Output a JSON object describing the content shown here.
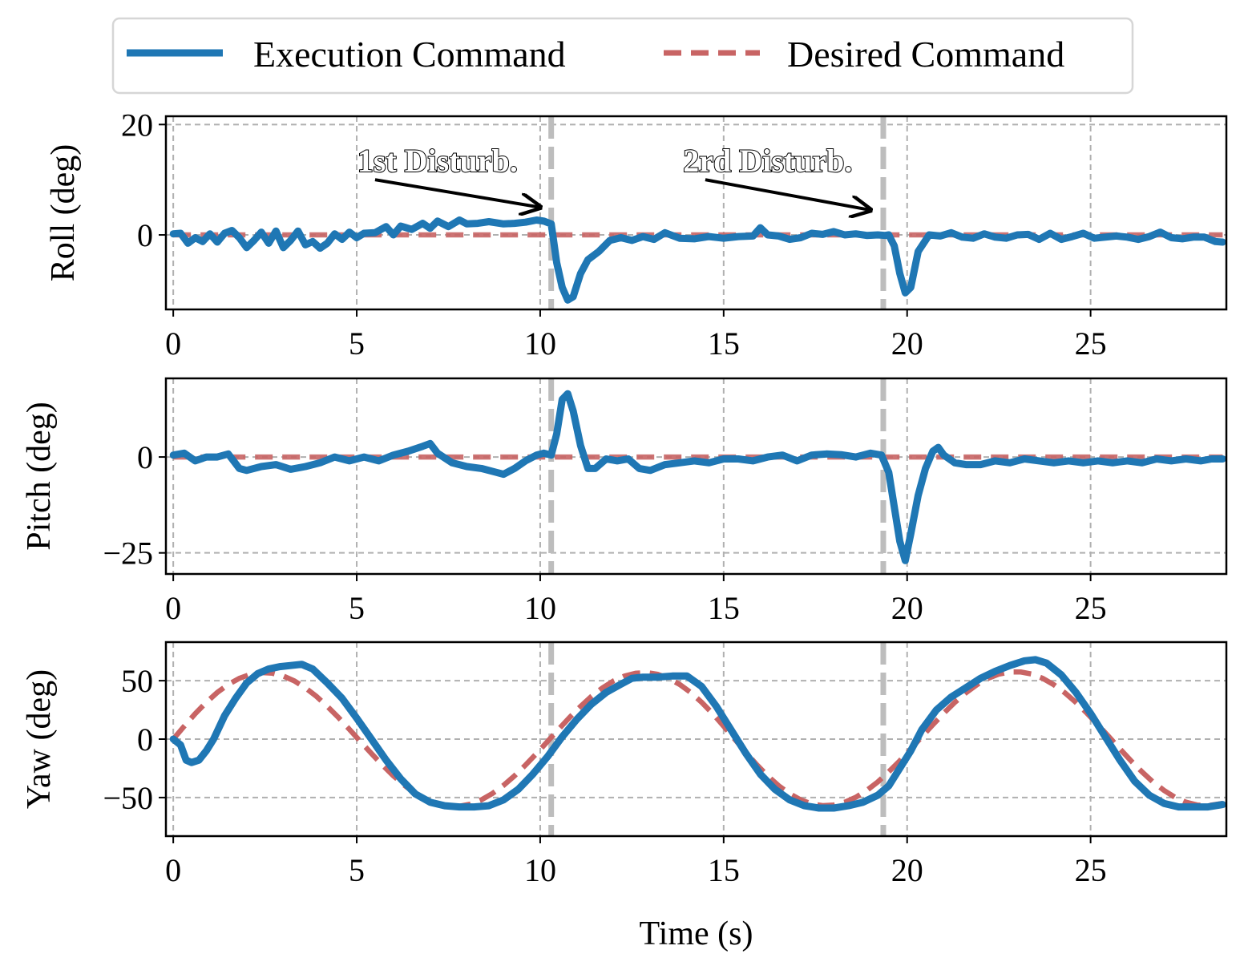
{
  "colors": {
    "execution": "#1f77b4",
    "desired": "#c86464",
    "disturbance_line": "#bdbdbd",
    "grid": "#b0b0b0"
  },
  "legend": {
    "placement": "top-center",
    "entries": [
      "Execution Command",
      "Desired Command"
    ]
  },
  "chart_data": [
    {
      "type": "line",
      "ylabel": "Roll (deg)",
      "xlabel": "",
      "xlim": [
        -0.2,
        28.7
      ],
      "ylim": [
        -13.5,
        21.5
      ],
      "xticks": [
        0,
        5,
        10,
        15,
        20,
        25
      ],
      "xtick_labels": [
        "0",
        "5",
        "10",
        "15",
        "20",
        "25"
      ],
      "yticks": [
        0,
        20
      ],
      "ytick_labels": [
        "0",
        "20"
      ],
      "grid": true,
      "disturbances_x": [
        10.3,
        19.35
      ],
      "annotations": [
        {
          "text": "1st Disturb.",
          "text_x": 7.2,
          "text_y": 13.5,
          "arrow_from": [
            5.5,
            10.0
          ],
          "arrow_to": [
            10.0,
            5.0
          ]
        },
        {
          "text": "2rd Disturb.",
          "text_x": 16.2,
          "text_y": 13.5,
          "arrow_from": [
            14.5,
            10.0
          ],
          "arrow_to": [
            19.0,
            4.5
          ]
        }
      ],
      "series": [
        {
          "name": "Execution Command",
          "x": [
            0,
            0.2,
            0.4,
            0.6,
            0.8,
            1.0,
            1.2,
            1.4,
            1.6,
            1.8,
            2.0,
            2.2,
            2.4,
            2.6,
            2.8,
            3.0,
            3.2,
            3.4,
            3.6,
            3.8,
            4.0,
            4.2,
            4.4,
            4.6,
            4.8,
            5.0,
            5.2,
            5.5,
            5.8,
            6.0,
            6.2,
            6.5,
            6.8,
            7.0,
            7.2,
            7.5,
            7.8,
            8.0,
            8.3,
            8.6,
            9.0,
            9.3,
            9.6,
            9.9,
            10.1,
            10.3,
            10.45,
            10.6,
            10.75,
            10.9,
            11.1,
            11.3,
            11.6,
            11.9,
            12.2,
            12.5,
            12.8,
            13.1,
            13.4,
            13.8,
            14.2,
            14.6,
            15.0,
            15.4,
            15.8,
            16.0,
            16.2,
            16.5,
            16.8,
            17.1,
            17.4,
            17.7,
            18.0,
            18.3,
            18.6,
            18.9,
            19.2,
            19.4,
            19.5,
            19.65,
            19.8,
            19.95,
            20.1,
            20.3,
            20.6,
            20.9,
            21.2,
            21.5,
            21.8,
            22.1,
            22.4,
            22.7,
            23.0,
            23.3,
            23.6,
            23.9,
            24.2,
            24.5,
            24.8,
            25.1,
            25.4,
            25.7,
            26.0,
            26.3,
            26.6,
            26.9,
            27.2,
            27.5,
            27.8,
            28.1,
            28.4,
            28.6
          ],
          "values": [
            0.2,
            0.3,
            -1.5,
            -0.5,
            -1.2,
            0.2,
            -1.3,
            0.3,
            0.8,
            -0.5,
            -2.3,
            -1.0,
            0.5,
            -1.5,
            0.7,
            -2.3,
            -1.0,
            0.7,
            -1.8,
            -1.2,
            -2.4,
            -1.5,
            0.2,
            -0.8,
            0.5,
            -0.5,
            0.3,
            0.4,
            1.5,
            0.0,
            1.6,
            1.0,
            2.1,
            1.2,
            2.5,
            1.5,
            2.7,
            2.0,
            2.1,
            2.4,
            2.0,
            2.1,
            2.3,
            2.7,
            2.5,
            2.0,
            -5.0,
            -9.5,
            -11.8,
            -11.2,
            -7.0,
            -4.5,
            -3.0,
            -1.0,
            -0.5,
            -1.0,
            -0.3,
            -0.8,
            0.4,
            -0.6,
            -0.7,
            -0.3,
            -0.6,
            -0.3,
            -0.2,
            1.3,
            0.0,
            -0.2,
            -0.8,
            -0.5,
            0.3,
            0.1,
            0.6,
            0.0,
            0.2,
            -0.1,
            0.0,
            -0.1,
            0.0,
            -2.0,
            -7.0,
            -10.5,
            -9.5,
            -3.0,
            0.0,
            -0.2,
            0.4,
            -0.4,
            -0.6,
            0.2,
            -0.4,
            -0.6,
            0.0,
            0.1,
            -0.8,
            0.3,
            -0.8,
            -0.3,
            0.3,
            -0.6,
            -0.4,
            -0.2,
            -0.4,
            -0.8,
            -0.3,
            0.5,
            -0.5,
            -0.7,
            -0.4,
            -0.4,
            -1.2,
            -1.3
          ]
        },
        {
          "name": "Desired Command",
          "x": [
            0,
            28.6
          ],
          "values": [
            0,
            0
          ]
        }
      ]
    },
    {
      "type": "line",
      "ylabel": "Pitch (deg)",
      "xlabel": "",
      "xlim": [
        -0.2,
        28.7
      ],
      "ylim": [
        -30.5,
        20.5
      ],
      "xticks": [
        0,
        5,
        10,
        15,
        20,
        25
      ],
      "xtick_labels": [
        "0",
        "5",
        "10",
        "15",
        "20",
        "25"
      ],
      "yticks": [
        -25,
        0
      ],
      "ytick_labels": [
        "−25",
        "0"
      ],
      "grid": true,
      "disturbances_x": [
        10.3,
        19.35
      ],
      "series": [
        {
          "name": "Execution Command",
          "x": [
            0,
            0.3,
            0.6,
            0.9,
            1.2,
            1.5,
            1.8,
            2.0,
            2.4,
            2.8,
            3.2,
            3.6,
            4.0,
            4.4,
            4.8,
            5.2,
            5.6,
            6.0,
            6.4,
            6.8,
            7.0,
            7.2,
            7.6,
            8.0,
            8.4,
            8.8,
            9.0,
            9.3,
            9.6,
            9.9,
            10.1,
            10.3,
            10.45,
            10.6,
            10.75,
            10.9,
            11.1,
            11.3,
            11.5,
            11.8,
            12.1,
            12.4,
            12.7,
            13.0,
            13.4,
            13.8,
            14.2,
            14.6,
            15.0,
            15.4,
            15.8,
            16.2,
            16.6,
            17.0,
            17.4,
            17.8,
            18.2,
            18.6,
            19.0,
            19.3,
            19.5,
            19.65,
            19.8,
            19.95,
            20.1,
            20.3,
            20.5,
            20.7,
            20.85,
            21.0,
            21.3,
            21.6,
            22.0,
            22.4,
            22.8,
            23.2,
            23.6,
            24.0,
            24.4,
            24.8,
            25.2,
            25.6,
            26.0,
            26.4,
            26.8,
            27.2,
            27.6,
            28.0,
            28.3,
            28.6
          ],
          "values": [
            0.5,
            1.0,
            -1.0,
            0.0,
            0.0,
            0.8,
            -3.0,
            -3.5,
            -2.5,
            -2.0,
            -3.2,
            -2.5,
            -1.5,
            0.0,
            -1.0,
            0.0,
            -1.0,
            0.5,
            1.5,
            2.8,
            3.5,
            1.0,
            -1.5,
            -2.5,
            -3.0,
            -4.0,
            -4.5,
            -3.0,
            -1.0,
            0.5,
            1.0,
            0.5,
            6.0,
            15.0,
            16.5,
            12.0,
            3.0,
            -3.0,
            -3.0,
            -0.5,
            -1.0,
            -0.5,
            -3.0,
            -3.5,
            -2.0,
            -1.5,
            -1.0,
            -1.5,
            -0.5,
            -0.5,
            -1.0,
            0.0,
            0.5,
            -1.0,
            0.5,
            0.8,
            0.6,
            0.0,
            1.0,
            0.5,
            -4.0,
            -13.0,
            -22.0,
            -27.0,
            -20.0,
            -10.0,
            -3.0,
            1.5,
            2.5,
            0.5,
            -1.5,
            -2.0,
            -2.0,
            -1.0,
            -1.5,
            -0.5,
            -1.0,
            -1.5,
            -1.0,
            -1.5,
            -1.0,
            -1.5,
            -1.0,
            -1.5,
            -0.5,
            -1.0,
            -0.5,
            -1.0,
            -0.5,
            -0.5
          ]
        },
        {
          "name": "Desired Command",
          "x": [
            0,
            28.6
          ],
          "values": [
            0,
            0
          ]
        }
      ]
    },
    {
      "type": "line",
      "ylabel": "Yaw (deg)",
      "xlabel": "Time (s)",
      "xlim": [
        -0.2,
        28.7
      ],
      "ylim": [
        -83,
        83
      ],
      "xticks": [
        0,
        5,
        10,
        15,
        20,
        25
      ],
      "xtick_labels": [
        "0",
        "5",
        "10",
        "15",
        "20",
        "25"
      ],
      "yticks": [
        -50,
        0,
        50
      ],
      "ytick_labels": [
        "−50",
        "0",
        "50"
      ],
      "grid": true,
      "disturbances_x": [
        10.3,
        19.35
      ],
      "series": [
        {
          "name": "Execution Command",
          "x": [
            0,
            0.2,
            0.35,
            0.5,
            0.7,
            0.9,
            1.1,
            1.4,
            1.7,
            2.0,
            2.3,
            2.6,
            2.9,
            3.2,
            3.5,
            3.8,
            4.2,
            4.6,
            5.0,
            5.4,
            5.8,
            6.2,
            6.6,
            7.0,
            7.4,
            7.8,
            8.2,
            8.6,
            9.0,
            9.4,
            9.8,
            10.2,
            10.6,
            11.0,
            11.4,
            11.8,
            12.2,
            12.5,
            12.8,
            13.2,
            13.6,
            14.0,
            14.4,
            14.8,
            15.2,
            15.6,
            16.0,
            16.4,
            16.8,
            17.2,
            17.6,
            18.0,
            18.4,
            18.8,
            19.2,
            19.5,
            19.8,
            20.1,
            20.4,
            20.8,
            21.2,
            21.6,
            22.0,
            22.4,
            22.8,
            23.2,
            23.5,
            23.8,
            24.2,
            24.6,
            25.0,
            25.4,
            25.8,
            26.2,
            26.6,
            27.0,
            27.4,
            27.8,
            28.2,
            28.6
          ],
          "values": [
            0,
            -5,
            -18,
            -20,
            -18,
            -10,
            0,
            20,
            35,
            48,
            56,
            60,
            62,
            63,
            64,
            60,
            48,
            35,
            18,
            0,
            -18,
            -34,
            -47,
            -54,
            -57,
            -58,
            -58,
            -57,
            -52,
            -43,
            -30,
            -15,
            2,
            17,
            30,
            40,
            47,
            52,
            53,
            53,
            54,
            54,
            45,
            28,
            8,
            -12,
            -30,
            -43,
            -52,
            -57,
            -59,
            -59,
            -57,
            -54,
            -48,
            -40,
            -25,
            -10,
            8,
            25,
            36,
            44,
            52,
            58,
            63,
            67,
            68,
            65,
            55,
            40,
            22,
            2,
            -18,
            -36,
            -48,
            -55,
            -58,
            -58,
            -58,
            -56
          ]
        },
        {
          "name": "Desired Command",
          "x": [
            0,
            0.3,
            0.6,
            0.9,
            1.2,
            1.5,
            1.8,
            2.1,
            2.4,
            2.7,
            3.0,
            3.3,
            3.6,
            3.9,
            4.2,
            4.5,
            4.8,
            5.1,
            5.4,
            5.7,
            6.0,
            6.3,
            6.6,
            6.9,
            7.2,
            7.5,
            7.8,
            8.1,
            8.4,
            8.7,
            9.0,
            9.3,
            9.6,
            9.9,
            10.2,
            10.5,
            10.8,
            11.1,
            11.4,
            11.7,
            12.0,
            12.3,
            12.6,
            12.9,
            13.2,
            13.5,
            13.8,
            14.1,
            14.4,
            14.7,
            15.0,
            15.3,
            15.6,
            15.9,
            16.2,
            16.5,
            16.8,
            17.1,
            17.4,
            17.7,
            18.0,
            18.3,
            18.6,
            18.9,
            19.2,
            19.5,
            19.8,
            20.1,
            20.4,
            20.7,
            21.0,
            21.3,
            21.6,
            21.9,
            22.2,
            22.5,
            22.8,
            23.1,
            23.4,
            23.7,
            24.0,
            24.3,
            24.6,
            24.9,
            25.2,
            25.5,
            25.8,
            26.1,
            26.4,
            26.7,
            27.0,
            27.3,
            27.6,
            27.9,
            28.2,
            28.6
          ],
          "values": [
            0,
            11.1,
            21.8,
            31.5,
            39.9,
            46.8,
            52.0,
            55.4,
            56.9,
            56.4,
            54.0,
            49.8,
            43.9,
            36.6,
            28.0,
            18.5,
            8.4,
            -2.0,
            -12.3,
            -22.2,
            -31.4,
            -39.6,
            -46.5,
            -51.9,
            -55.6,
            -57.4,
            -57.4,
            -55.6,
            -51.9,
            -46.5,
            -39.6,
            -31.4,
            -22.2,
            -12.3,
            -2.0,
            8.4,
            18.5,
            28.0,
            36.6,
            43.9,
            49.8,
            54.0,
            56.4,
            56.9,
            55.4,
            52.0,
            46.8,
            39.9,
            31.5,
            21.8,
            11.1,
            0.0,
            -11.1,
            -21.8,
            -31.5,
            -39.9,
            -46.8,
            -52.0,
            -55.4,
            -56.9,
            -56.4,
            -54.0,
            -49.8,
            -43.9,
            -36.6,
            -28.0,
            -18.5,
            -8.4,
            2.0,
            12.3,
            22.2,
            31.4,
            39.6,
            46.5,
            51.9,
            55.6,
            57.4,
            57.4,
            55.6,
            51.9,
            46.5,
            39.6,
            31.4,
            22.2,
            12.3,
            2.0,
            -8.4,
            -18.5,
            -28.0,
            -36.6,
            -43.9,
            -49.8,
            -54.0,
            -56.4,
            -56.9,
            -55.0
          ]
        }
      ]
    }
  ]
}
